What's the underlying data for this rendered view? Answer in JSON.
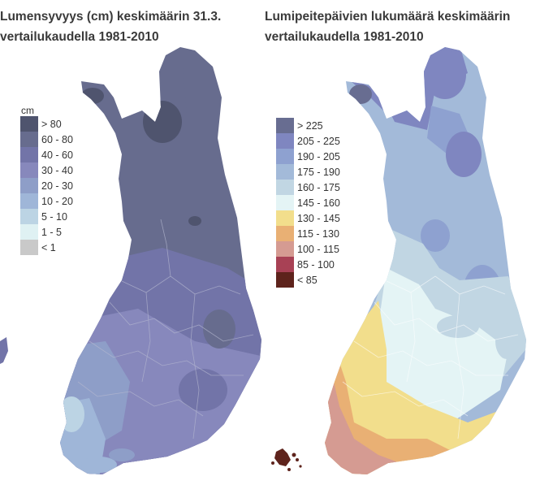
{
  "left_panel": {
    "title_line1": "Lumensyvyys (cm) keskimäärin 31.3.",
    "title_line2": "vertailukaudella 1981-2010",
    "legend_unit": "cm",
    "legend": [
      {
        "label": "> 80",
        "color": "#4f546e"
      },
      {
        "label": "60 - 80",
        "color": "#676c8e"
      },
      {
        "label": "40 - 60",
        "color": "#7274a8"
      },
      {
        "label": "30 - 40",
        "color": "#8788bc"
      },
      {
        "label": "20 - 30",
        "color": "#8e9ec8"
      },
      {
        "label": "10 - 20",
        "color": "#9fb6d8"
      },
      {
        "label": "5 - 10",
        "color": "#bcd4e4"
      },
      {
        "label": "1 - 5",
        "color": "#dff1f3"
      },
      {
        "label": "< 1",
        "color": "#c9c9c9"
      }
    ]
  },
  "right_panel": {
    "title_line1": "Lumipeitepäivien lukumäärä keskimäärin",
    "title_line2": "vertailukaudella 1981-2010",
    "legend": [
      {
        "label": "> 225",
        "color": "#686d91"
      },
      {
        "label": "205 - 225",
        "color": "#7f86c0"
      },
      {
        "label": "190 - 205",
        "color": "#8ea1d0"
      },
      {
        "label": "175 - 190",
        "color": "#a3bad9"
      },
      {
        "label": "160 - 175",
        "color": "#c1d6e3"
      },
      {
        "label": "145 - 160",
        "color": "#e4f4f5"
      },
      {
        "label": "130 - 145",
        "color": "#f2de8c"
      },
      {
        "label": "115 - 130",
        "color": "#e9b074"
      },
      {
        "label": "100 - 115",
        "color": "#d59b92"
      },
      {
        "label": "85 - 100",
        "color": "#a84155"
      },
      {
        "label": "< 85",
        "color": "#5e231c"
      }
    ]
  }
}
